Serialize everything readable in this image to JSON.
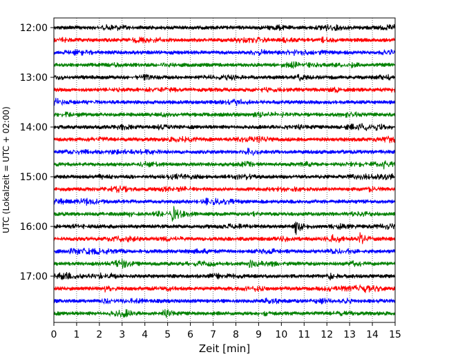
{
  "chart_data": {
    "type": "line",
    "title": "",
    "xlabel": "Zeit  [min]",
    "ylabel": "UTC (Lokalzeit = UTC + 02:00)",
    "xlim": [
      0,
      15
    ],
    "x_ticks": [
      "0",
      "1",
      "2",
      "3",
      "4",
      "5",
      "6",
      "7",
      "8",
      "9",
      "10",
      "11",
      "12",
      "13",
      "14",
      "15"
    ],
    "y_tick_labels": [
      "12:00",
      "13:00",
      "14:00",
      "15:00",
      "16:00",
      "17:00"
    ],
    "grid": "vertical dotted",
    "trace_colors": [
      "#000000",
      "#ff0000",
      "#0000ff",
      "#008000"
    ],
    "trace_start_times": [
      "12:00",
      "12:15",
      "12:30",
      "12:45",
      "13:00",
      "13:15",
      "13:30",
      "13:45",
      "14:00",
      "14:15",
      "14:30",
      "14:45",
      "15:00",
      "15:15",
      "15:30",
      "15:45",
      "16:00",
      "16:15",
      "16:30",
      "16:45",
      "17:00",
      "17:15",
      "17:30",
      "17:45"
    ],
    "events": [
      {
        "trace": "12:00",
        "time_min": 14.8,
        "amplitude": 0.4
      },
      {
        "trace": "12:15",
        "time_min": 10.1,
        "amplitude": 0.5
      },
      {
        "trace": "12:15",
        "time_min": 11.7,
        "amplitude": 0.5
      },
      {
        "trace": "13:00",
        "time_min": 10.7,
        "amplitude": 0.6
      },
      {
        "trace": "14:00",
        "time_min": 4.6,
        "amplitude": 0.4
      },
      {
        "trace": "14:15",
        "time_min": 8.9,
        "amplitude": 0.4
      },
      {
        "trace": "14:45",
        "time_min": 14.5,
        "amplitude": 0.5
      },
      {
        "trace": "15:45",
        "time_min": 5.2,
        "amplitude": 1.2
      },
      {
        "trace": "16:00",
        "time_min": 10.6,
        "amplitude": 1.5
      },
      {
        "trace": "16:15",
        "time_min": 13.4,
        "amplitude": 1.1
      },
      {
        "trace": "16:45",
        "time_min": 8.6,
        "amplitude": 1.1
      },
      {
        "trace": "17:00",
        "time_min": 11.95,
        "amplitude": 1.0
      },
      {
        "trace": "17:15",
        "time_min": 2.2,
        "amplitude": 0.4
      },
      {
        "trace": "17:30",
        "time_min": 2.1,
        "amplitude": 0.5
      },
      {
        "trace": "17:45",
        "time_min": 4.8,
        "amplitude": 0.4
      }
    ]
  }
}
